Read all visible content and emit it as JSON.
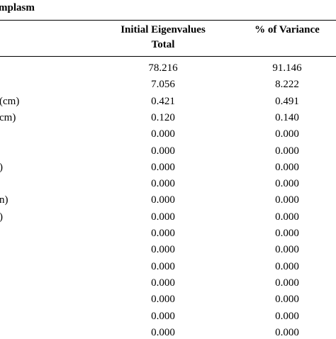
{
  "title": "mplasm",
  "table": {
    "header": {
      "total": [
        "Initial Eigenvalues",
        "Total"
      ],
      "variance": "% of Variance"
    },
    "rows": [
      [
        null,
        "78.216",
        "91.146"
      ],
      [
        null,
        "7.056",
        "8.222"
      ],
      [
        "(cm)",
        "0.421",
        "0.491"
      ],
      [
        "cm)",
        "0.120",
        "0.140"
      ],
      [
        null,
        "0.000",
        "0.000"
      ],
      [
        null,
        "0.000",
        "0.000"
      ],
      [
        ")",
        "0.000",
        "0.000"
      ],
      [
        null,
        "0.000",
        "0.000"
      ],
      [
        "n)",
        "0.000",
        "0.000"
      ],
      [
        ")",
        "0.000",
        "0.000"
      ],
      [
        null,
        "0.000",
        "0.000"
      ],
      [
        null,
        "0.000",
        "0.000"
      ],
      [
        null,
        "0.000",
        "0.000"
      ],
      [
        null,
        "0.000",
        "0.000"
      ],
      [
        null,
        "0.000",
        "0.000"
      ],
      [
        null,
        "0.000",
        "0.000"
      ],
      [
        null,
        "0.000",
        "0.000"
      ]
    ]
  }
}
